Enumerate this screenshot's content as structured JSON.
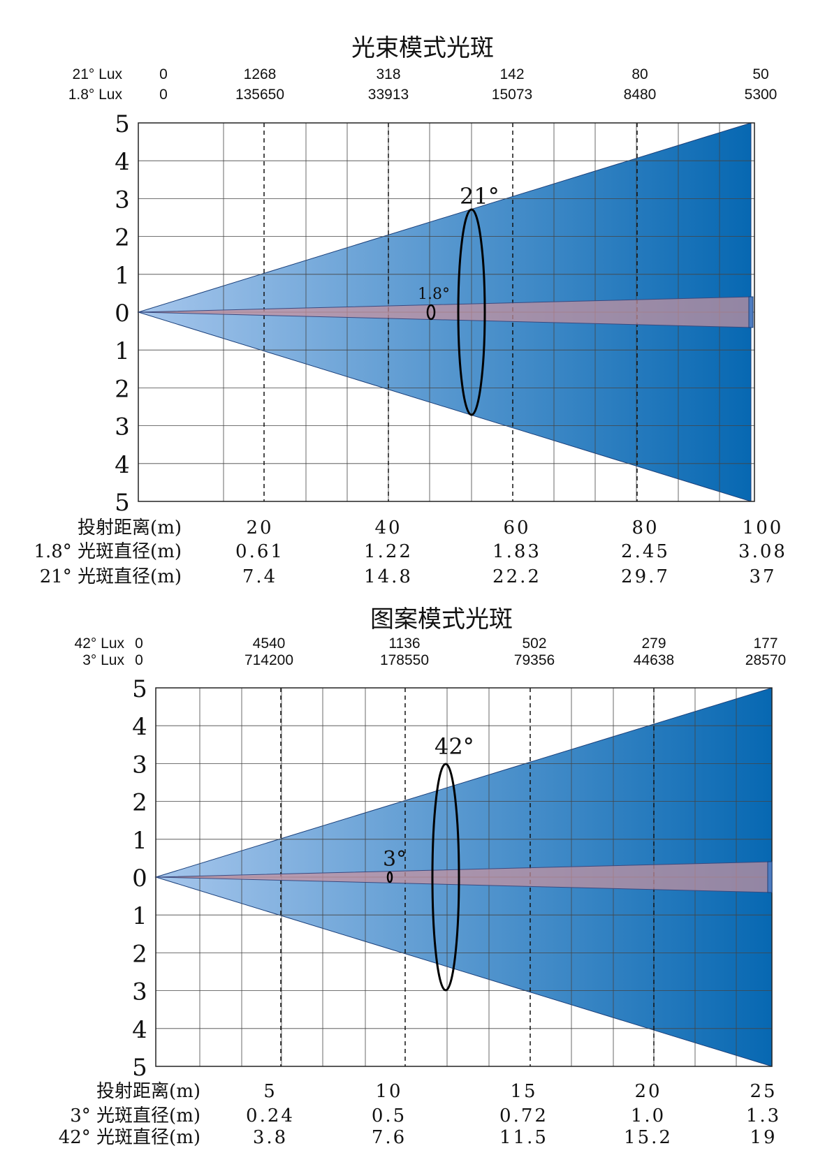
{
  "panels": [
    {
      "title": "光束模式光斑",
      "lux_rows": [
        {
          "label": "21° Lux",
          "zero": "0",
          "values": [
            "1268",
            "318",
            "142",
            "80",
            "50"
          ]
        },
        {
          "label": "1.8° Lux",
          "zero": "0",
          "values": [
            "135650",
            "33913",
            "15073",
            "8480",
            "5300"
          ]
        }
      ],
      "y_ticks": [
        "5",
        "4",
        "3",
        "2",
        "1",
        "0",
        "1",
        "2",
        "3",
        "4",
        "5"
      ],
      "bottom_rows": [
        {
          "label": "投射距离(m)",
          "values": [
            "20",
            "40",
            "60",
            "80",
            "100"
          ]
        },
        {
          "label": "1.8° 光斑直径(m)",
          "values": [
            "0.61",
            "1.22",
            "1.83",
            "2.45",
            "3.08"
          ]
        },
        {
          "label": "21° 光斑直径(m)",
          "values": [
            "7.4",
            "14.8",
            "22.2",
            "29.7",
            "37"
          ]
        }
      ],
      "wide_beam_label": "21°",
      "narrow_beam_label": "1.8°",
      "colors": {
        "wide_light": "#a6c6ec",
        "wide_dark": "#0768b2",
        "narrow": "#c9919e"
      }
    },
    {
      "title": "图案模式光斑",
      "lux_rows": [
        {
          "label": "42° Lux",
          "zero": "0",
          "values": [
            "4540",
            "1136",
            "502",
            "279",
            "177"
          ]
        },
        {
          "label": "3° Lux",
          "zero": "0",
          "values": [
            "714200",
            "178550",
            "79356",
            "44638",
            "28570"
          ]
        }
      ],
      "y_ticks": [
        "5",
        "4",
        "3",
        "2",
        "1",
        "0",
        "1",
        "2",
        "3",
        "4",
        "5"
      ],
      "bottom_rows": [
        {
          "label": "投射距离(m)",
          "values": [
            "5",
            "10",
            "15",
            "20",
            "25"
          ]
        },
        {
          "label": "3° 光斑直径(m)",
          "values": [
            "0.24",
            "0.5",
            "0.72",
            "1.0",
            "1.3"
          ]
        },
        {
          "label": "42° 光斑直径(m)",
          "values": [
            "3.8",
            "7.6",
            "11.5",
            "15.2",
            "19"
          ]
        }
      ],
      "wide_beam_label": "42°",
      "narrow_beam_label": "3°",
      "colors": {
        "wide_light": "#a6c6ec",
        "wide_dark": "#0768b2",
        "narrow": "#c9919e"
      }
    }
  ]
}
